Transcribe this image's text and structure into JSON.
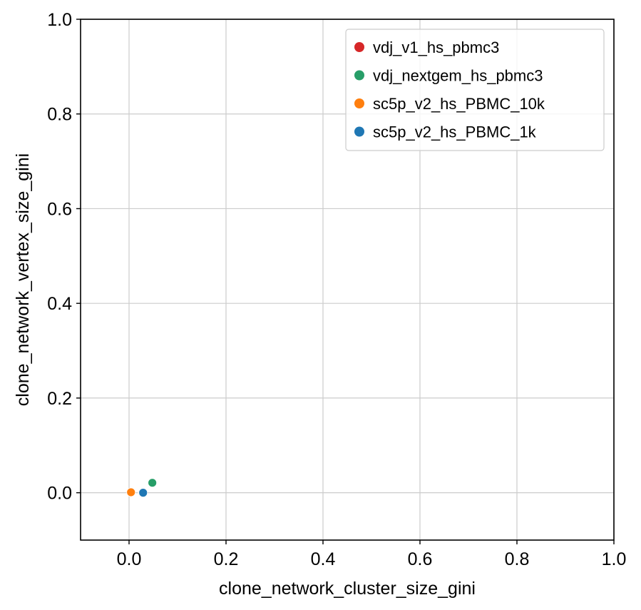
{
  "chart_data": {
    "type": "scatter",
    "title": "",
    "xlabel": "clone_network_cluster_size_gini",
    "ylabel": "clone_network_vertex_size_gini",
    "xlim": [
      -0.1,
      1.0
    ],
    "ylim": [
      -0.1,
      1.0
    ],
    "xticks": [
      0.0,
      0.2,
      0.4,
      0.6,
      0.8,
      1.0
    ],
    "yticks": [
      0.0,
      0.2,
      0.4,
      0.6,
      0.8,
      1.0
    ],
    "xtick_labels": [
      "0.0",
      "0.2",
      "0.4",
      "0.6",
      "0.8",
      "1.0"
    ],
    "ytick_labels": [
      "0.0",
      "0.2",
      "0.4",
      "0.6",
      "0.8",
      "1.0"
    ],
    "grid": true,
    "legend_position": "top-right",
    "series": [
      {
        "name": "vdj_v1_hs_pbmc3",
        "color": "#d62728",
        "points": [
          {
            "x": 0.028,
            "y": 0.0
          }
        ]
      },
      {
        "name": "vdj_nextgem_hs_pbmc3",
        "color": "#279e68",
        "points": [
          {
            "x": 0.048,
            "y": 0.021
          }
        ]
      },
      {
        "name": "sc5p_v2_hs_PBMC_10k",
        "color": "#ff7f0e",
        "points": [
          {
            "x": 0.004,
            "y": 0.001
          }
        ]
      },
      {
        "name": "sc5p_v2_hs_PBMC_1k",
        "color": "#1f77b4",
        "points": [
          {
            "x": 0.029,
            "y": 0.0
          }
        ]
      }
    ]
  }
}
